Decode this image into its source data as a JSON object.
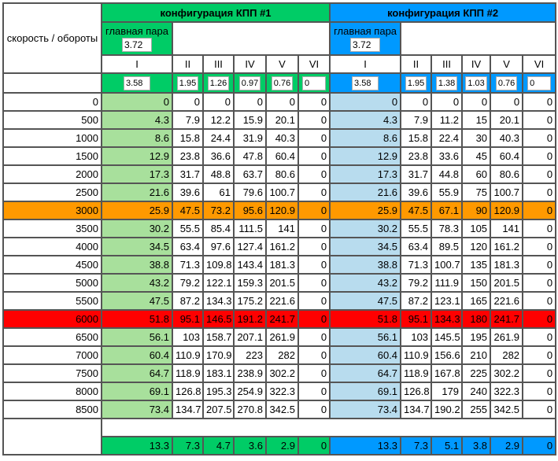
{
  "speed_header": "скорость / обороты",
  "configs": [
    {
      "title": "конфигурация КПП #1",
      "main_pair_label": "главная пара",
      "main_pair": "3.72",
      "gear_labels": [
        "I",
        "II",
        "III",
        "IV",
        "V",
        "VI"
      ],
      "ratios": [
        "3.58",
        "1.95",
        "1.26",
        "0.97",
        "0.76",
        "0"
      ],
      "totals": [
        "13.3",
        "7.3",
        "4.7",
        "3.6",
        "2.9",
        "0"
      ],
      "color": "#00cc66",
      "light": "#a8e09c"
    },
    {
      "title": "конфигурация КПП #2",
      "main_pair_label": "главная пара",
      "main_pair": "3.72",
      "gear_labels": [
        "I",
        "II",
        "III",
        "IV",
        "V",
        "VI"
      ],
      "ratios": [
        "3.58",
        "1.95",
        "1.38",
        "1.03",
        "0.76",
        "0"
      ],
      "totals": [
        "13.3",
        "7.3",
        "5.1",
        "3.8",
        "2.9",
        "0"
      ],
      "color": "#0099ff",
      "light": "#b8dcee"
    }
  ],
  "highlight": {
    "3000": "#ff9900",
    "6000": "#ff0000"
  },
  "rows": [
    {
      "rpm": "0",
      "c1": [
        "0",
        "0",
        "0",
        "0",
        "0",
        "0"
      ],
      "c2": [
        "0",
        "0",
        "0",
        "0",
        "0",
        "0"
      ]
    },
    {
      "rpm": "500",
      "c1": [
        "4.3",
        "7.9",
        "12.2",
        "15.9",
        "20.1",
        "0"
      ],
      "c2": [
        "4.3",
        "7.9",
        "11.2",
        "15",
        "20.1",
        "0"
      ]
    },
    {
      "rpm": "1000",
      "c1": [
        "8.6",
        "15.8",
        "24.4",
        "31.9",
        "40.3",
        "0"
      ],
      "c2": [
        "8.6",
        "15.8",
        "22.4",
        "30",
        "40.3",
        "0"
      ]
    },
    {
      "rpm": "1500",
      "c1": [
        "12.9",
        "23.8",
        "36.6",
        "47.8",
        "60.4",
        "0"
      ],
      "c2": [
        "12.9",
        "23.8",
        "33.6",
        "45",
        "60.4",
        "0"
      ]
    },
    {
      "rpm": "2000",
      "c1": [
        "17.3",
        "31.7",
        "48.8",
        "63.7",
        "80.6",
        "0"
      ],
      "c2": [
        "17.3",
        "31.7",
        "44.8",
        "60",
        "80.6",
        "0"
      ]
    },
    {
      "rpm": "2500",
      "c1": [
        "21.6",
        "39.6",
        "61",
        "79.6",
        "100.7",
        "0"
      ],
      "c2": [
        "21.6",
        "39.6",
        "55.9",
        "75",
        "100.7",
        "0"
      ]
    },
    {
      "rpm": "3000",
      "c1": [
        "25.9",
        "47.5",
        "73.2",
        "95.6",
        "120.9",
        "0"
      ],
      "c2": [
        "25.9",
        "47.5",
        "67.1",
        "90",
        "120.9",
        "0"
      ]
    },
    {
      "rpm": "3500",
      "c1": [
        "30.2",
        "55.5",
        "85.4",
        "111.5",
        "141",
        "0"
      ],
      "c2": [
        "30.2",
        "55.5",
        "78.3",
        "105",
        "141",
        "0"
      ]
    },
    {
      "rpm": "4000",
      "c1": [
        "34.5",
        "63.4",
        "97.6",
        "127.4",
        "161.2",
        "0"
      ],
      "c2": [
        "34.5",
        "63.4",
        "89.5",
        "120",
        "161.2",
        "0"
      ]
    },
    {
      "rpm": "4500",
      "c1": [
        "38.8",
        "71.3",
        "109.8",
        "143.4",
        "181.3",
        "0"
      ],
      "c2": [
        "38.8",
        "71.3",
        "100.7",
        "135",
        "181.3",
        "0"
      ]
    },
    {
      "rpm": "5000",
      "c1": [
        "43.2",
        "79.2",
        "122.1",
        "159.3",
        "201.5",
        "0"
      ],
      "c2": [
        "43.2",
        "79.2",
        "111.9",
        "150",
        "201.5",
        "0"
      ]
    },
    {
      "rpm": "5500",
      "c1": [
        "47.5",
        "87.2",
        "134.3",
        "175.2",
        "221.6",
        "0"
      ],
      "c2": [
        "47.5",
        "87.2",
        "123.1",
        "165",
        "221.6",
        "0"
      ]
    },
    {
      "rpm": "6000",
      "c1": [
        "51.8",
        "95.1",
        "146.5",
        "191.2",
        "241.7",
        "0"
      ],
      "c2": [
        "51.8",
        "95.1",
        "134.3",
        "180",
        "241.7",
        "0"
      ]
    },
    {
      "rpm": "6500",
      "c1": [
        "56.1",
        "103",
        "158.7",
        "207.1",
        "261.9",
        "0"
      ],
      "c2": [
        "56.1",
        "103",
        "145.5",
        "195",
        "261.9",
        "0"
      ]
    },
    {
      "rpm": "7000",
      "c1": [
        "60.4",
        "110.9",
        "170.9",
        "223",
        "282",
        "0"
      ],
      "c2": [
        "60.4",
        "110.9",
        "156.6",
        "210",
        "282",
        "0"
      ]
    },
    {
      "rpm": "7500",
      "c1": [
        "64.7",
        "118.9",
        "183.1",
        "238.9",
        "302.2",
        "0"
      ],
      "c2": [
        "64.7",
        "118.9",
        "167.8",
        "225",
        "302.2",
        "0"
      ]
    },
    {
      "rpm": "8000",
      "c1": [
        "69.1",
        "126.8",
        "195.3",
        "254.9",
        "322.3",
        "0"
      ],
      "c2": [
        "69.1",
        "126.8",
        "179",
        "240",
        "322.3",
        "0"
      ]
    },
    {
      "rpm": "8500",
      "c1": [
        "73.4",
        "134.7",
        "207.5",
        "270.8",
        "342.5",
        "0"
      ],
      "c2": [
        "73.4",
        "134.7",
        "190.2",
        "255",
        "342.5",
        "0"
      ]
    }
  ]
}
